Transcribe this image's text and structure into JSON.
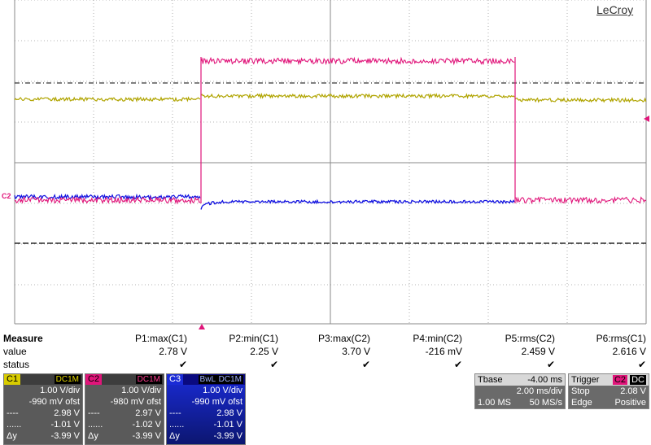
{
  "brand": "LeCroy",
  "channel_marker": "C2",
  "colors": {
    "c1": "#b0a400",
    "c2": "#e0157a",
    "c3": "#1010e0",
    "grid": "#9a9a9a"
  },
  "measure": {
    "title": "Measure",
    "row_value": "value",
    "row_status": "status",
    "params": [
      {
        "label": "P1:max(C1)",
        "value": "2.78 V",
        "status": "✔"
      },
      {
        "label": "P2:min(C1)",
        "value": "2.25 V",
        "status": "✔"
      },
      {
        "label": "P3:max(C2)",
        "value": "3.70 V",
        "status": "✔"
      },
      {
        "label": "P4:min(C2)",
        "value": "-216 mV",
        "status": "✔"
      },
      {
        "label": "P5:rms(C2)",
        "value": "2.459 V",
        "status": "✔"
      },
      {
        "label": "P6:rms(C1)",
        "value": "2.616 V",
        "status": "✔"
      }
    ]
  },
  "channels": [
    {
      "tag": "C1",
      "coupling": "DC1M",
      "vdiv": "1.00 V/div",
      "offset": "-990 mV ofst",
      "r1": "2.98 V",
      "r2": "-1.01 V",
      "dy": "-3.99 V",
      "l1": "----",
      "l2": "......",
      "l3": "Δy"
    },
    {
      "tag": "C2",
      "coupling": "DC1M",
      "vdiv": "1.00 V/div",
      "offset": "-980 mV ofst",
      "r1": "2.97 V",
      "r2": "-1.02 V",
      "dy": "-3.99 V",
      "l1": "----",
      "l2": "......",
      "l3": "Δy"
    },
    {
      "tag": "C3",
      "badges": "BwL",
      "coupling": "DC1M",
      "vdiv": "1.00 V/div",
      "offset": "-990 mV ofst",
      "r1": "2.98 V",
      "r2": "-1.01 V",
      "dy": "-3.99 V",
      "l1": "----",
      "l2": "......",
      "l3": "Δy"
    }
  ],
  "timebase": {
    "label": "Tbase",
    "delay": "-4.00 ms",
    "tdiv": "2.00 ms/div",
    "samples": "1.00 MS",
    "rate": "50 MS/s"
  },
  "trigger": {
    "label": "Trigger",
    "ch": "C2",
    "coupling": "DC",
    "mode": "Stop",
    "level": "2.08 V",
    "type": "Edge",
    "slope": "Positive"
  }
}
